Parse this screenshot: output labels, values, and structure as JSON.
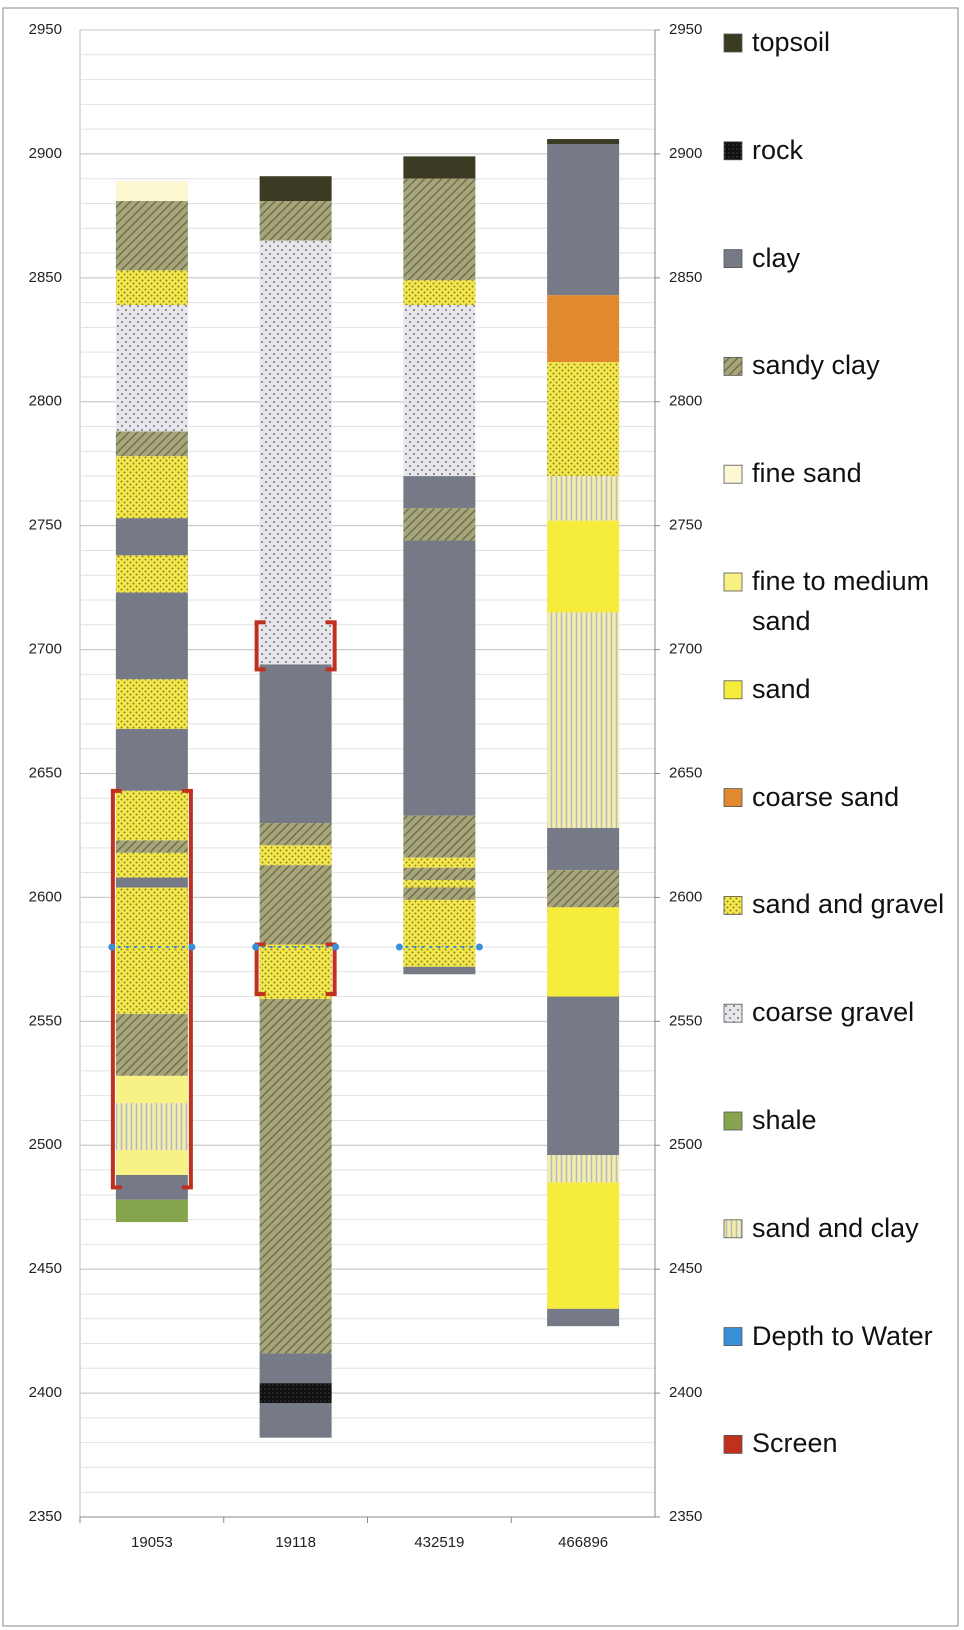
{
  "chart_data": {
    "type": "borehole",
    "categories": [
      "19053",
      "19118",
      "432519",
      "466896"
    ],
    "ylim": [
      2350,
      2950
    ],
    "yticks": [
      2350,
      2400,
      2450,
      2500,
      2550,
      2600,
      2650,
      2700,
      2750,
      2800,
      2850,
      2900,
      2950
    ],
    "y2lim": [
      2350,
      2950
    ],
    "y2ticks": [
      2350,
      2400,
      2450,
      2500,
      2550,
      2600,
      2650,
      2700,
      2750,
      2800,
      2850,
      2900,
      2950
    ],
    "grid": true,
    "minor_step": 10,
    "legend": [
      {
        "name": "topsoil",
        "color": "#3b3b24",
        "pattern": "solid"
      },
      {
        "name": "rock",
        "color": "#111111",
        "pattern": "dots-dark"
      },
      {
        "name": "clay",
        "color": "#767a86",
        "pattern": "solid"
      },
      {
        "name": "sandy clay",
        "color": "#9a9a72",
        "pattern": "hatch"
      },
      {
        "name": "fine sand",
        "color": "#fcf8d2",
        "pattern": "solid"
      },
      {
        "name": "fine to medium sand",
        "color": "#f8f185",
        "pattern": "solid"
      },
      {
        "name": "sand",
        "color": "#f6ec3c",
        "pattern": "solid"
      },
      {
        "name": "coarse sand",
        "color": "#e0892f",
        "pattern": "solid"
      },
      {
        "name": "sand and gravel",
        "color": "#f2e64a",
        "pattern": "dots-yellow"
      },
      {
        "name": "coarse gravel",
        "color": "#e4e4ea",
        "pattern": "dots-gray"
      },
      {
        "name": "shale",
        "color": "#86a34e",
        "pattern": "solid"
      },
      {
        "name": "sand and clay",
        "color": "#f4efa8",
        "pattern": "vlines"
      },
      {
        "name": "Depth to Water",
        "color": "#3b8fd9",
        "pattern": "solid"
      },
      {
        "name": "Screen",
        "color": "#c0301f",
        "pattern": "solid"
      }
    ],
    "wells": [
      {
        "layers": [
          {
            "lith": "fine sand",
            "top": 2889,
            "bottom": 2881
          },
          {
            "lith": "sandy clay",
            "top": 2881,
            "bottom": 2853
          },
          {
            "lith": "sand and gravel",
            "top": 2853,
            "bottom": 2839
          },
          {
            "lith": "coarse gravel",
            "top": 2839,
            "bottom": 2788
          },
          {
            "lith": "sandy clay",
            "top": 2788,
            "bottom": 2778
          },
          {
            "lith": "sand and gravel",
            "top": 2778,
            "bottom": 2753
          },
          {
            "lith": "clay",
            "top": 2753,
            "bottom": 2738
          },
          {
            "lith": "sand and gravel",
            "top": 2738,
            "bottom": 2723
          },
          {
            "lith": "clay",
            "top": 2723,
            "bottom": 2688
          },
          {
            "lith": "sand and gravel",
            "top": 2688,
            "bottom": 2668
          },
          {
            "lith": "clay",
            "top": 2668,
            "bottom": 2643
          },
          {
            "lith": "sand and gravel",
            "top": 2643,
            "bottom": 2623
          },
          {
            "lith": "sandy clay",
            "top": 2623,
            "bottom": 2618
          },
          {
            "lith": "sand and gravel",
            "top": 2618,
            "bottom": 2608
          },
          {
            "lith": "clay",
            "top": 2608,
            "bottom": 2604
          },
          {
            "lith": "sand and gravel",
            "top": 2604,
            "bottom": 2553
          },
          {
            "lith": "sandy clay",
            "top": 2553,
            "bottom": 2528
          },
          {
            "lith": "fine to medium sand",
            "top": 2528,
            "bottom": 2517
          },
          {
            "lith": "sand and clay",
            "top": 2517,
            "bottom": 2498
          },
          {
            "lith": "fine to medium sand",
            "top": 2498,
            "bottom": 2488
          },
          {
            "lith": "clay",
            "top": 2488,
            "bottom": 2478
          },
          {
            "lith": "shale",
            "top": 2478,
            "bottom": 2469
          }
        ],
        "screens": [
          {
            "top": 2643,
            "bottom": 2483
          }
        ],
        "water": 2580
      },
      {
        "layers": [
          {
            "lith": "topsoil",
            "top": 2891,
            "bottom": 2881
          },
          {
            "lith": "sandy clay",
            "top": 2881,
            "bottom": 2865
          },
          {
            "lith": "coarse gravel",
            "top": 2865,
            "bottom": 2694
          },
          {
            "lith": "clay",
            "top": 2694,
            "bottom": 2630
          },
          {
            "lith": "sandy clay",
            "top": 2630,
            "bottom": 2621
          },
          {
            "lith": "sand and gravel",
            "top": 2621,
            "bottom": 2613
          },
          {
            "lith": "sandy clay",
            "top": 2613,
            "bottom": 2581
          },
          {
            "lith": "sand and gravel",
            "top": 2581,
            "bottom": 2559
          },
          {
            "lith": "sandy clay",
            "top": 2559,
            "bottom": 2416
          },
          {
            "lith": "clay",
            "top": 2416,
            "bottom": 2404
          },
          {
            "lith": "rock",
            "top": 2404,
            "bottom": 2396
          },
          {
            "lith": "clay",
            "top": 2396,
            "bottom": 2382
          }
        ],
        "screens": [
          {
            "top": 2711,
            "bottom": 2692
          },
          {
            "top": 2581,
            "bottom": 2561
          }
        ],
        "water": 2580
      },
      {
        "layers": [
          {
            "lith": "topsoil",
            "top": 2899,
            "bottom": 2890
          },
          {
            "lith": "sandy clay",
            "top": 2890,
            "bottom": 2849
          },
          {
            "lith": "sand and gravel",
            "top": 2849,
            "bottom": 2839
          },
          {
            "lith": "coarse gravel",
            "top": 2839,
            "bottom": 2770
          },
          {
            "lith": "clay",
            "top": 2770,
            "bottom": 2757
          },
          {
            "lith": "sandy clay",
            "top": 2757,
            "bottom": 2744
          },
          {
            "lith": "clay",
            "top": 2744,
            "bottom": 2633
          },
          {
            "lith": "sandy clay",
            "top": 2633,
            "bottom": 2616
          },
          {
            "lith": "sand and gravel",
            "top": 2616,
            "bottom": 2612
          },
          {
            "lith": "sandy clay",
            "top": 2612,
            "bottom": 2607
          },
          {
            "lith": "sand and gravel",
            "top": 2607,
            "bottom": 2604
          },
          {
            "lith": "sandy clay",
            "top": 2604,
            "bottom": 2599
          },
          {
            "lith": "sand and gravel",
            "top": 2599,
            "bottom": 2572
          },
          {
            "lith": "clay",
            "top": 2572,
            "bottom": 2569
          }
        ],
        "screens": [],
        "water": 2580
      },
      {
        "layers": [
          {
            "lith": "topsoil",
            "top": 2906,
            "bottom": 2904
          },
          {
            "lith": "clay",
            "top": 2904,
            "bottom": 2843
          },
          {
            "lith": "coarse sand",
            "top": 2843,
            "bottom": 2816
          },
          {
            "lith": "sand and gravel",
            "top": 2816,
            "bottom": 2770
          },
          {
            "lith": "sand and clay",
            "top": 2770,
            "bottom": 2752
          },
          {
            "lith": "sand",
            "top": 2752,
            "bottom": 2715
          },
          {
            "lith": "sand and clay",
            "top": 2715,
            "bottom": 2628
          },
          {
            "lith": "clay",
            "top": 2628,
            "bottom": 2611
          },
          {
            "lith": "sandy clay",
            "top": 2611,
            "bottom": 2596
          },
          {
            "lith": "sand",
            "top": 2596,
            "bottom": 2560
          },
          {
            "lith": "clay",
            "top": 2560,
            "bottom": 2496
          },
          {
            "lith": "sand and clay",
            "top": 2496,
            "bottom": 2485
          },
          {
            "lith": "sand",
            "top": 2485,
            "bottom": 2434
          },
          {
            "lith": "clay",
            "top": 2434,
            "bottom": 2427
          }
        ],
        "screens": []
      }
    ]
  }
}
